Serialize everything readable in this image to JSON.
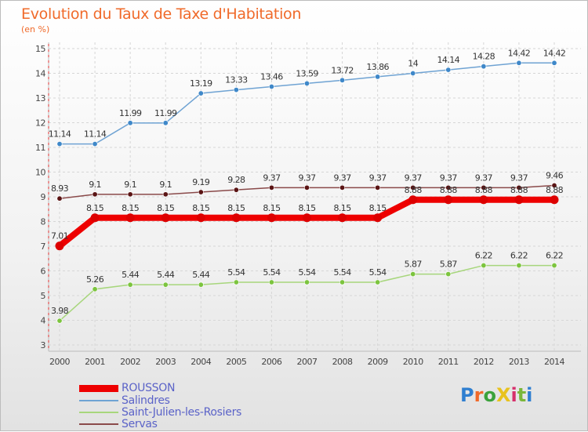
{
  "title": "Evolution du Taux de Taxe d'Habitation",
  "subtitle": "(en %)",
  "logo": {
    "text": "ProXiti",
    "letter_colors": [
      "#2f7fd0",
      "#f06a2a",
      "#3ba23b",
      "#e8c21e",
      "#d62f6b",
      "#7ab73a",
      "#2f7fd0"
    ]
  },
  "chart_data": {
    "type": "line",
    "x": [
      2000,
      2001,
      2002,
      2003,
      2004,
      2005,
      2006,
      2007,
      2008,
      2009,
      2010,
      2011,
      2012,
      2013,
      2014
    ],
    "ylim": [
      3,
      15
    ],
    "yticks": [
      3,
      4,
      5,
      6,
      7,
      8,
      9,
      10,
      11,
      12,
      13,
      14,
      15
    ],
    "grid": true,
    "legend_position": "bottom-left",
    "series": [
      {
        "name": "ROUSSON",
        "color": "#ee0000",
        "marker_color": "#dd0000",
        "values": [
          7.01,
          8.15,
          8.15,
          8.15,
          8.15,
          8.15,
          8.15,
          8.15,
          8.15,
          8.15,
          8.88,
          8.88,
          8.88,
          8.88,
          8.88
        ],
        "labels": [
          "7.01",
          "8.15",
          "8.15",
          "8.15",
          "8.15",
          "8.15",
          "8.15",
          "8.15",
          "8.15",
          "8.15",
          "8.88",
          "8.88",
          "8.88",
          "8.88",
          "8.88"
        ]
      },
      {
        "name": "Salindres",
        "color": "#6fa3d3",
        "marker_color": "#3f88c9",
        "values": [
          11.14,
          11.14,
          11.99,
          11.99,
          13.19,
          13.33,
          13.46,
          13.59,
          13.72,
          13.86,
          14,
          14.14,
          14.28,
          14.42,
          14.42
        ],
        "labels": [
          "11.14",
          "11.14",
          "11.99",
          "11.99",
          "13.19",
          "13.33",
          "13.46",
          "13.59",
          "13.72",
          "13.86",
          "14",
          "14.14",
          "14.28",
          "14.42",
          "14.42"
        ]
      },
      {
        "name": "Saint-Julien-les-Rosiers",
        "color": "#a7d67c",
        "marker_color": "#7cc43e",
        "values": [
          3.98,
          5.26,
          5.44,
          5.44,
          5.44,
          5.54,
          5.54,
          5.54,
          5.54,
          5.54,
          5.87,
          5.87,
          6.22,
          6.22,
          6.22
        ],
        "labels": [
          "3.98",
          "5.26",
          "5.44",
          "5.44",
          "5.44",
          "5.54",
          "5.54",
          "5.54",
          "5.54",
          "5.54",
          "5.87",
          "5.87",
          "6.22",
          "6.22",
          "6.22"
        ]
      },
      {
        "name": "Servas",
        "color": "#8a4a4a",
        "marker_color": "#5a1414",
        "values": [
          8.93,
          9.1,
          9.1,
          9.1,
          9.19,
          9.28,
          9.37,
          9.37,
          9.37,
          9.37,
          9.37,
          9.37,
          9.37,
          9.37,
          9.46
        ],
        "labels": [
          "8.93",
          "9.1",
          "9.1",
          "9.1",
          "9.19",
          "9.28",
          "9.37",
          "9.37",
          "9.37",
          "9.37",
          "9.37",
          "9.37",
          "9.37",
          "9.37",
          "9.46"
        ]
      }
    ]
  }
}
